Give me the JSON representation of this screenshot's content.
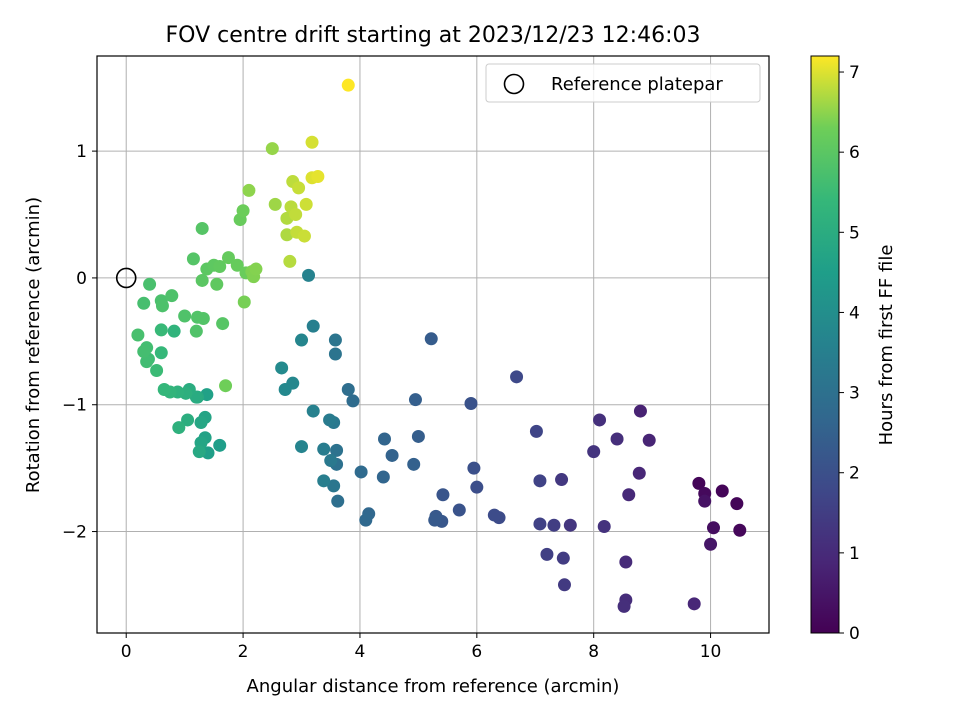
{
  "chart_data": {
    "type": "scatter",
    "title": "FOV centre drift starting at 2023/12/23 12:46:03",
    "xlabel": "Angular distance from reference (arcmin)",
    "ylabel": "Rotation from reference (arcmin)",
    "xlim": [
      -0.5,
      11.0
    ],
    "ylim": [
      -2.8,
      1.75
    ],
    "xticks": [
      0,
      2,
      4,
      6,
      8,
      10
    ],
    "yticks": [
      -2,
      -1,
      0,
      1
    ],
    "grid": true,
    "legend": {
      "placement": "top-right",
      "entries": [
        "Reference platepar"
      ]
    },
    "reference_point": {
      "x": 0,
      "y": 0
    },
    "colorbar": {
      "label": "Hours from first FF file",
      "min": 0,
      "max": 7.2,
      "ticks": [
        0,
        1,
        2,
        3,
        4,
        5,
        6,
        7
      ],
      "colormap": "viridis"
    },
    "points": [
      [
        9.8,
        -1.62,
        0.1
      ],
      [
        10.45,
        -1.78,
        0.1
      ],
      [
        10.2,
        -1.68,
        0.1
      ],
      [
        10.5,
        -1.99,
        0.15
      ],
      [
        9.9,
        -1.7,
        0.2
      ],
      [
        10.05,
        -1.97,
        0.3
      ],
      [
        9.9,
        -1.76,
        0.4
      ],
      [
        10.0,
        -2.1,
        0.5
      ],
      [
        9.72,
        -2.57,
        0.9
      ],
      [
        8.8,
        -1.05,
        0.8
      ],
      [
        8.95,
        -1.28,
        0.85
      ],
      [
        8.78,
        -1.54,
        0.9
      ],
      [
        8.6,
        -1.71,
        0.95
      ],
      [
        8.55,
        -2.24,
        1.0
      ],
      [
        8.55,
        -2.54,
        1.05
      ],
      [
        8.52,
        -2.59,
        1.1
      ],
      [
        8.4,
        -1.27,
        1.1
      ],
      [
        8.1,
        -1.12,
        1.15
      ],
      [
        8.18,
        -1.96,
        1.2
      ],
      [
        8.0,
        -1.37,
        1.25
      ],
      [
        7.6,
        -1.95,
        1.3
      ],
      [
        7.45,
        -1.59,
        1.35
      ],
      [
        7.5,
        -2.42,
        1.4
      ],
      [
        7.48,
        -2.21,
        1.45
      ],
      [
        7.32,
        -1.95,
        1.5
      ],
      [
        7.2,
        -2.18,
        1.55
      ],
      [
        7.08,
        -1.94,
        1.6
      ],
      [
        7.08,
        -1.6,
        1.65
      ],
      [
        7.02,
        -1.21,
        1.7
      ],
      [
        6.68,
        -0.78,
        1.8
      ],
      [
        6.38,
        -1.89,
        1.85
      ],
      [
        6.3,
        -1.87,
        1.9
      ],
      [
        6.0,
        -1.65,
        1.95
      ],
      [
        5.95,
        -1.5,
        2.0
      ],
      [
        5.9,
        -0.99,
        2.05
      ],
      [
        5.7,
        -1.83,
        2.1
      ],
      [
        5.42,
        -1.71,
        2.15
      ],
      [
        5.4,
        -1.92,
        2.2
      ],
      [
        5.3,
        -1.88,
        2.25
      ],
      [
        5.28,
        -1.91,
        2.3
      ],
      [
        5.22,
        -0.48,
        2.35
      ],
      [
        5.0,
        -1.25,
        2.4
      ],
      [
        4.95,
        -0.96,
        2.45
      ],
      [
        4.92,
        -1.47,
        2.5
      ],
      [
        4.55,
        -1.4,
        2.55
      ],
      [
        4.42,
        -1.27,
        2.6
      ],
      [
        4.4,
        -1.57,
        2.65
      ],
      [
        4.15,
        -1.86,
        2.7
      ],
      [
        4.1,
        -1.91,
        2.75
      ],
      [
        4.02,
        -1.53,
        2.8
      ],
      [
        3.88,
        -0.97,
        2.85
      ],
      [
        3.8,
        -0.88,
        2.9
      ],
      [
        3.62,
        -1.76,
        2.95
      ],
      [
        3.6,
        -1.47,
        3.0
      ],
      [
        3.6,
        -1.36,
        3.05
      ],
      [
        3.58,
        -0.6,
        3.1
      ],
      [
        3.58,
        -0.49,
        3.15
      ],
      [
        3.55,
        -1.64,
        3.2
      ],
      [
        3.55,
        -1.14,
        3.25
      ],
      [
        3.5,
        -1.44,
        3.3
      ],
      [
        3.48,
        -1.12,
        3.35
      ],
      [
        3.38,
        -1.35,
        3.4
      ],
      [
        3.38,
        -1.6,
        3.45
      ],
      [
        3.2,
        -0.38,
        3.5
      ],
      [
        3.2,
        -1.05,
        3.55
      ],
      [
        3.12,
        0.02,
        3.6
      ],
      [
        3.0,
        -1.33,
        3.65
      ],
      [
        3.0,
        -0.49,
        3.7
      ],
      [
        2.85,
        -0.83,
        3.75
      ],
      [
        2.72,
        -0.88,
        3.8
      ],
      [
        2.66,
        -0.71,
        3.85
      ],
      [
        1.6,
        -1.32,
        4.5
      ],
      [
        1.4,
        -1.38,
        4.55
      ],
      [
        1.38,
        -0.92,
        4.6
      ],
      [
        1.35,
        -1.26,
        4.65
      ],
      [
        1.35,
        -1.1,
        4.7
      ],
      [
        1.28,
        -1.3,
        4.75
      ],
      [
        1.28,
        -1.14,
        4.8
      ],
      [
        1.25,
        -1.37,
        4.85
      ],
      [
        1.22,
        -0.94,
        4.9
      ],
      [
        1.2,
        -0.94,
        4.95
      ],
      [
        1.08,
        -0.88,
        5.0
      ],
      [
        1.05,
        -1.12,
        5.05
      ],
      [
        1.02,
        -0.91,
        5.1
      ],
      [
        0.9,
        -1.18,
        5.15
      ],
      [
        0.88,
        -0.9,
        5.2
      ],
      [
        0.82,
        -0.42,
        5.25
      ],
      [
        0.75,
        -0.9,
        5.3
      ],
      [
        0.65,
        -0.88,
        5.35
      ],
      [
        0.6,
        -0.59,
        5.4
      ],
      [
        0.6,
        -0.41,
        5.45
      ],
      [
        0.52,
        -0.73,
        5.5
      ],
      [
        0.38,
        -0.64,
        5.55
      ],
      [
        0.35,
        -0.66,
        5.6
      ],
      [
        0.35,
        -0.55,
        5.62
      ],
      [
        0.3,
        -0.58,
        5.65
      ],
      [
        0.3,
        -0.2,
        5.68
      ],
      [
        0.2,
        -0.45,
        5.7
      ],
      [
        0.4,
        -0.05,
        5.72
      ],
      [
        0.6,
        -0.18,
        5.75
      ],
      [
        0.62,
        -0.22,
        5.78
      ],
      [
        0.78,
        -0.14,
        5.8
      ],
      [
        1.0,
        -0.3,
        5.82
      ],
      [
        1.2,
        -0.42,
        5.84
      ],
      [
        1.22,
        -0.31,
        5.86
      ],
      [
        1.32,
        -0.32,
        5.88
      ],
      [
        1.15,
        0.15,
        5.9
      ],
      [
        1.3,
        0.39,
        5.92
      ],
      [
        1.65,
        -0.36,
        5.94
      ],
      [
        1.3,
        -0.02,
        6.0
      ],
      [
        1.38,
        0.07,
        6.02
      ],
      [
        1.5,
        0.1,
        6.05
      ],
      [
        1.55,
        -0.05,
        6.08
      ],
      [
        1.6,
        0.09,
        6.1
      ],
      [
        1.75,
        0.16,
        6.15
      ],
      [
        1.9,
        0.1,
        6.18
      ],
      [
        1.95,
        0.46,
        6.2
      ],
      [
        2.05,
        0.04,
        6.22
      ],
      [
        2.0,
        0.53,
        6.25
      ],
      [
        1.7,
        -0.85,
        6.3
      ],
      [
        2.02,
        -0.19,
        6.35
      ],
      [
        2.15,
        0.05,
        6.4
      ],
      [
        2.18,
        0.01,
        6.42
      ],
      [
        2.22,
        0.07,
        6.44
      ],
      [
        2.1,
        0.69,
        6.5
      ],
      [
        2.5,
        1.02,
        6.55
      ],
      [
        2.55,
        0.58,
        6.6
      ],
      [
        2.75,
        0.34,
        6.7
      ],
      [
        2.75,
        0.47,
        6.72
      ],
      [
        2.8,
        0.13,
        6.75
      ],
      [
        2.82,
        0.56,
        6.78
      ],
      [
        2.85,
        0.76,
        6.8
      ],
      [
        2.9,
        0.5,
        6.82
      ],
      [
        2.92,
        0.36,
        6.84
      ],
      [
        2.95,
        0.71,
        6.86
      ],
      [
        3.05,
        0.33,
        6.88
      ],
      [
        3.08,
        0.58,
        6.9
      ],
      [
        3.18,
        1.07,
        6.95
      ],
      [
        3.18,
        0.79,
        7.0
      ],
      [
        3.28,
        0.8,
        7.05
      ],
      [
        3.8,
        1.52,
        7.2
      ]
    ]
  }
}
